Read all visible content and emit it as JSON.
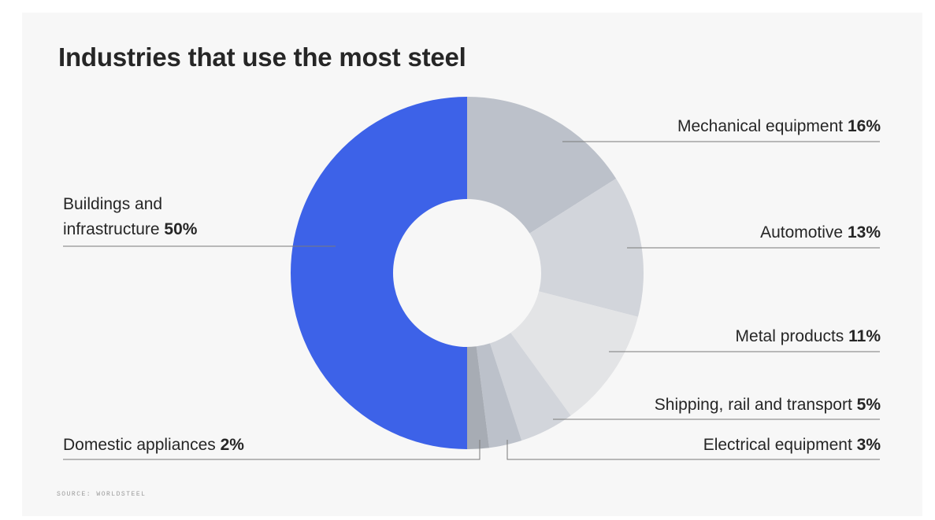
{
  "title": "Industries that use the most steel",
  "source": "SOURCE: WORLDSTEEL",
  "colors": {
    "buildings": "#3d62e8",
    "mechanical": "#bcc1ca",
    "automotive": "#d2d5db",
    "metal": "#e3e4e6",
    "shipping": "#d2d5db",
    "electrical": "#bcc1ca",
    "domestic": "#a7acb4",
    "leader": "#7a7a7a"
  },
  "chart_data": {
    "type": "pie",
    "title": "Industries that use the most steel",
    "donut": true,
    "slices": [
      {
        "name": "Mechanical equipment",
        "value": 16,
        "label": "16%",
        "color": "#bcc1ca"
      },
      {
        "name": "Automotive",
        "value": 13,
        "label": "13%",
        "color": "#d2d5db"
      },
      {
        "name": "Metal products",
        "value": 11,
        "label": "11%",
        "color": "#e3e4e6"
      },
      {
        "name": "Shipping, rail and transport",
        "value": 5,
        "label": "5%",
        "color": "#d2d5db"
      },
      {
        "name": "Electrical equipment",
        "value": 3,
        "label": "3%",
        "color": "#bcc1ca"
      },
      {
        "name": "Domestic appliances",
        "value": 2,
        "label": "2%",
        "color": "#a7acb4"
      },
      {
        "name": "Buildings and infrastructure",
        "value": 50,
        "label": "50%",
        "color": "#3d62e8"
      }
    ],
    "labels": {
      "buildings_line1": "Buildings and",
      "buildings_line2": "infrastructure"
    }
  }
}
